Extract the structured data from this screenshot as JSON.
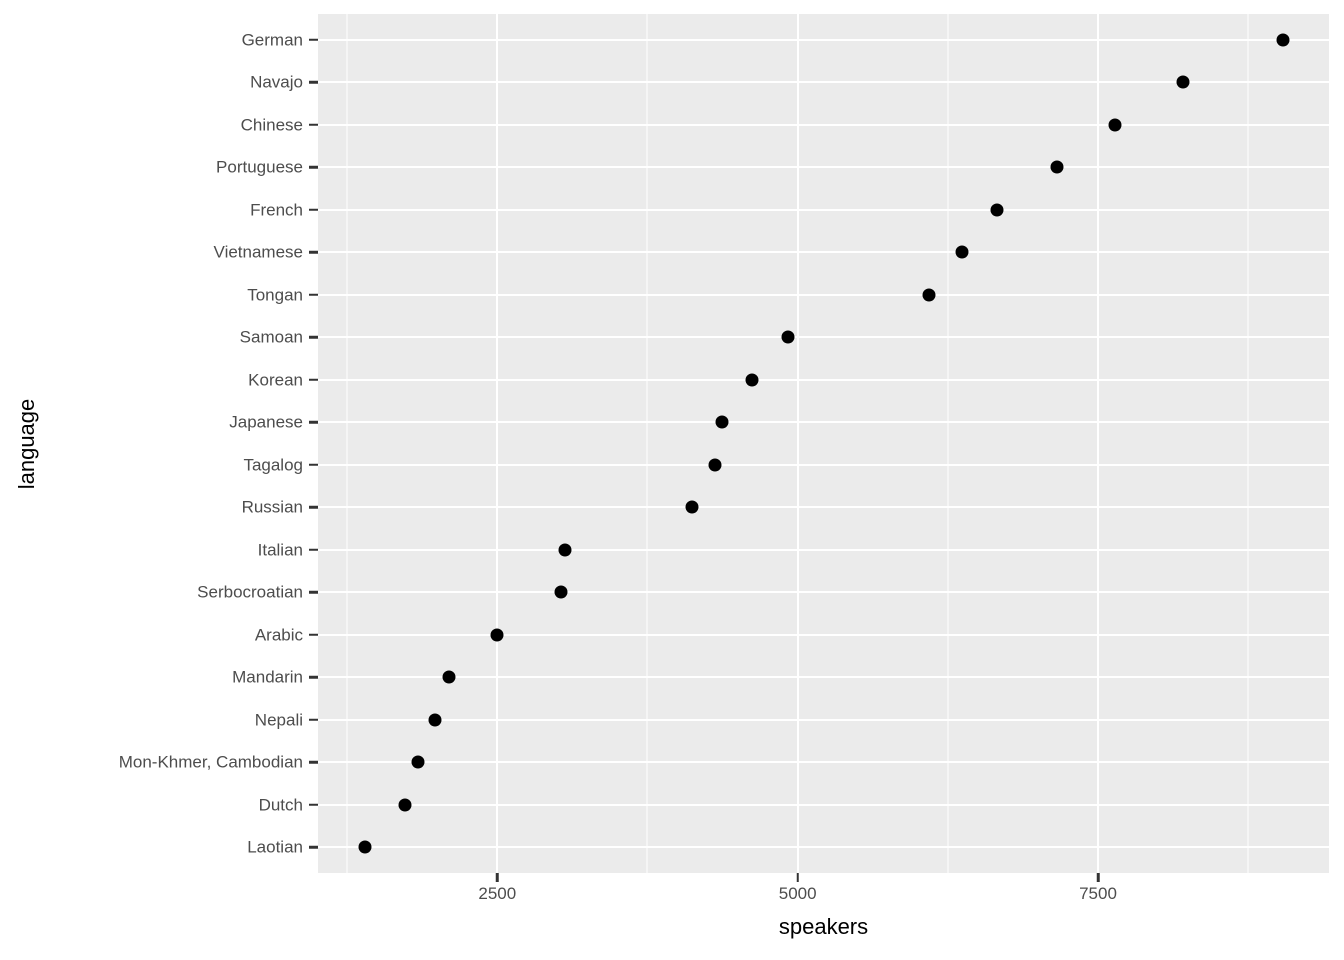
{
  "chart_data": {
    "type": "scatter",
    "variant": "cleveland-dot-plot",
    "title": "",
    "xlabel": "speakers",
    "ylabel": "language",
    "xlim": [
      1007.5,
      9422.5
    ],
    "x_major_ticks": [
      2500,
      5000,
      7500
    ],
    "x_major_tick_labels": [
      "2500",
      "5000",
      "7500"
    ],
    "x_minor_gridlines": [
      1250,
      3750,
      6250,
      8750
    ],
    "grid": "white major+minor vertical, white major horizontal per category, on grey panel",
    "legend_position": "none",
    "categories": [
      "German",
      "Navajo",
      "Chinese",
      "Portuguese",
      "French",
      "Vietnamese",
      "Tongan",
      "Samoan",
      "Korean",
      "Japanese",
      "Tagalog",
      "Russian",
      "Italian",
      "Serbocroatian",
      "Arabic",
      "Mandarin",
      "Nepali",
      "Mon-Khmer, Cambodian",
      "Dutch",
      "Laotian"
    ],
    "series": [
      {
        "name": "speakers",
        "values": [
          9040,
          8210,
          7640,
          7160,
          6655,
          6365,
          6090,
          4920,
          4620,
          4370,
          4310,
          4120,
          3065,
          3030,
          2495,
          2095,
          1985,
          1840,
          1730,
          1395
        ]
      }
    ],
    "colors": {
      "panel_background": "#EBEBEB",
      "gridline": "#FFFFFF",
      "point": "#000000",
      "tick_text": "#4D4D4D",
      "tick_mark": "#333333",
      "axis_title": "#000000",
      "page_background": "#FFFFFF"
    }
  }
}
